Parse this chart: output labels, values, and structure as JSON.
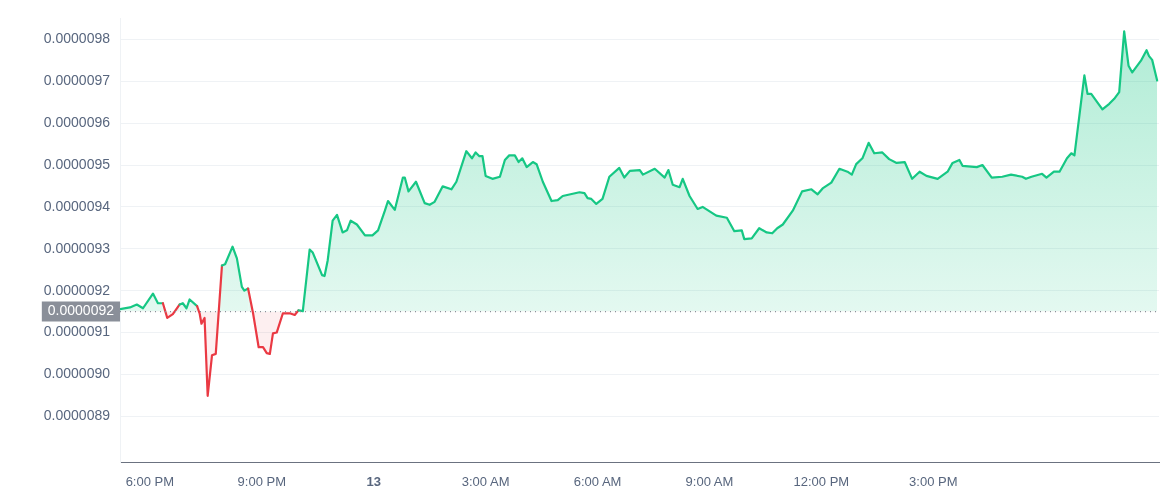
{
  "chart_data": {
    "type": "area",
    "xlim": [
      "--01-12T17:12",
      "--01-13T21:03"
    ],
    "xticks": [
      {
        "value": "--01-12T18:00",
        "label": "6:00 PM"
      },
      {
        "value": "--01-12T21:00",
        "label": "9:00 PM"
      },
      {
        "value": "--01-13T00:00",
        "label": "13"
      },
      {
        "value": "--01-13T03:00",
        "label": "3:00 AM"
      },
      {
        "value": "--01-13T06:00",
        "label": "6:00 AM"
      },
      {
        "value": "--01-13T09:00",
        "label": "9:00 AM"
      },
      {
        "value": "--01-13T12:00",
        "label": "12:00 PM"
      },
      {
        "value": "--01-13T15:00",
        "label": "3:00 PM"
      }
    ],
    "ylim": [
      8.79e-06,
      9.85e-06
    ],
    "yticks": [
      {
        "value": 8.9e-06,
        "label": "0.0000089"
      },
      {
        "value": 9e-06,
        "label": "0.0000090"
      },
      {
        "value": 9.1e-06,
        "label": "0.0000091"
      },
      {
        "value": 9.2e-06,
        "label": "0.0000092"
      },
      {
        "value": 9.3e-06,
        "label": "0.0000093"
      },
      {
        "value": 9.4e-06,
        "label": "0.0000094"
      },
      {
        "value": 9.5e-06,
        "label": "0.0000095"
      },
      {
        "value": 9.6e-06,
        "label": "0.0000096"
      },
      {
        "value": 9.7e-06,
        "label": "0.0000097"
      },
      {
        "value": 9.8e-06,
        "label": "0.0000098"
      }
    ],
    "grid": "y",
    "legend": false,
    "marker": "none",
    "line_style": "solid",
    "ref_lines": [
      {
        "axis": "y",
        "value": 9.15e-06,
        "label": "0.0000092",
        "color": "#8a8f99",
        "line_style": "dotted"
      }
    ],
    "series": [
      {
        "color": "#16c784",
        "x": [
          "--01-12T17:12",
          "--01-12T17:28",
          "--01-12T17:39",
          "--01-12T17:49",
          "--01-12T18:05",
          "--01-12T18:13",
          "--01-12T18:21",
          "--01-12T18:28",
          "--01-12T18:37",
          "--01-12T18:48",
          "--01-12T18:53",
          "--01-12T18:59",
          "--01-12T19:04",
          "--01-12T19:16",
          "--01-12T19:20",
          "--01-12T19:23",
          "--01-12T19:28",
          "--01-12T19:33",
          "--01-12T19:40",
          "--01-12T19:46",
          "--01-12T19:56",
          "--01-12T20:01",
          "--01-12T20:13",
          "--01-12T20:20",
          "--01-12T20:28",
          "--01-12T20:32",
          "--01-12T20:38",
          "--01-12T20:46",
          "--01-12T20:55",
          "--01-12T21:02",
          "--01-12T21:08",
          "--01-12T21:13",
          "--01-12T21:18",
          "--01-12T21:24",
          "--01-12T21:34",
          "--01-12T21:45",
          "--01-12T21:53",
          "--01-12T21:59",
          "--01-12T22:06",
          "--01-12T22:17",
          "--01-12T22:22",
          "--01-12T22:37",
          "--01-12T22:41",
          "--01-12T22:46",
          "--01-12T22:54",
          "--01-12T23:01",
          "--01-12T23:10",
          "--01-12T23:17",
          "--01-12T23:23",
          "--01-12T23:33",
          "--01-12T23:46",
          "--01-12T23:58",
          "--01-13T00:07",
          "--01-13T00:18",
          "--01-13T00:23",
          "--01-13T00:34",
          "--01-13T00:47",
          "--01-13T00:50",
          "--01-13T00:56",
          "--01-13T01:08",
          "--01-13T01:22",
          "--01-13T01:30",
          "--01-13T01:38",
          "--01-13T01:51",
          "--01-13T02:05",
          "--01-13T02:13",
          "--01-13T02:29",
          "--01-13T02:38",
          "--01-13T02:44",
          "--01-13T02:50",
          "--01-13T02:55",
          "--01-13T03:00",
          "--01-13T03:11",
          "--01-13T03:23",
          "--01-13T03:31",
          "--01-13T03:38",
          "--01-13T03:47",
          "--01-13T03:53",
          "--01-13T03:59",
          "--01-13T04:06",
          "--01-13T04:16",
          "--01-13T04:22",
          "--01-13T04:32",
          "--01-13T04:46",
          "--01-13T04:56",
          "--01-13T05:04",
          "--01-13T05:31",
          "--01-13T05:39",
          "--01-13T05:44",
          "--01-13T05:50",
          "--01-13T05:58",
          "--01-13T06:08",
          "--01-13T06:19",
          "--01-13T06:35",
          "--01-13T06:43",
          "--01-13T06:52",
          "--01-13T07:08",
          "--01-13T07:13",
          "--01-13T07:32",
          "--01-13T07:48",
          "--01-13T07:54",
          "--01-13T08:01",
          "--01-13T08:12",
          "--01-13T08:17",
          "--01-13T08:28",
          "--01-13T08:41",
          "--01-13T08:49",
          "--01-13T09:11",
          "--01-13T09:28",
          "--01-13T09:40",
          "--01-13T09:52",
          "--01-13T09:56",
          "--01-13T10:08",
          "--01-13T10:20",
          "--01-13T10:32",
          "--01-13T10:41",
          "--01-13T10:49",
          "--01-13T10:58",
          "--01-13T11:14",
          "--01-13T11:29",
          "--01-13T11:44",
          "--01-13T11:54",
          "--01-13T12:02",
          "--01-13T12:16",
          "--01-13T12:29",
          "--01-13T12:42",
          "--01-13T12:49",
          "--01-13T12:56",
          "--01-13T13:06",
          "--01-13T13:16",
          "--01-13T13:25",
          "--01-13T13:38",
          "--01-13T13:49",
          "--01-13T14:01",
          "--01-13T14:14",
          "--01-13T14:26",
          "--01-13T14:38",
          "--01-13T14:49",
          "--01-13T15:07",
          "--01-13T15:23",
          "--01-13T15:31",
          "--01-13T15:42",
          "--01-13T15:47",
          "--01-13T16:10",
          "--01-13T16:19",
          "--01-13T16:34",
          "--01-13T16:51",
          "--01-13T17:05",
          "--01-13T17:23",
          "--01-13T17:29",
          "--01-13T17:38",
          "--01-13T17:55",
          "--01-13T18:02",
          "--01-13T18:14",
          "--01-13T18:23",
          "--01-13T18:35",
          "--01-13T18:42",
          "--01-13T18:47",
          "--01-13T19:03",
          "--01-13T19:08",
          "--01-13T19:14",
          "--01-13T19:32",
          "--01-13T19:43",
          "--01-13T19:51",
          "--01-13T19:59",
          "--01-13T20:07",
          "--01-13T20:14",
          "--01-13T20:20",
          "--01-13T20:34",
          "--01-13T20:43",
          "--01-13T20:47",
          "--01-13T20:52",
          "--01-13T21:00"
        ],
        "values": [
          9.156e-06,
          9.16e-06,
          9.167e-06,
          9.158e-06,
          9.193e-06,
          9.17e-06,
          9.17e-06,
          9.135e-06,
          9.144e-06,
          9.167e-06,
          9.17e-06,
          9.158e-06,
          9.179e-06,
          9.163e-06,
          9.146e-06,
          9.121e-06,
          9.135e-06,
          8.949e-06,
          9.046e-06,
          9.049e-06,
          9.26e-06,
          9.263e-06,
          9.305e-06,
          9.277e-06,
          9.209e-06,
          9.2e-06,
          9.205e-06,
          9.146e-06,
          9.065e-06,
          9.065e-06,
          9.051e-06,
          9.049e-06,
          9.098e-06,
          9.1e-06,
          9.146e-06,
          9.146e-06,
          9.142e-06,
          9.153e-06,
          9.151e-06,
          9.298e-06,
          9.291e-06,
          9.237e-06,
          9.235e-06,
          9.272e-06,
          9.367e-06,
          9.381e-06,
          9.339e-06,
          9.344e-06,
          9.367e-06,
          9.358e-06,
          9.332e-06,
          9.332e-06,
          9.344e-06,
          9.391e-06,
          9.414e-06,
          9.393e-06,
          9.47e-06,
          9.47e-06,
          9.437e-06,
          9.46e-06,
          9.409e-06,
          9.405e-06,
          9.412e-06,
          9.449e-06,
          9.442e-06,
          9.46e-06,
          9.533e-06,
          9.516e-06,
          9.53e-06,
          9.521e-06,
          9.521e-06,
          9.474e-06,
          9.467e-06,
          9.472e-06,
          9.512e-06,
          9.523e-06,
          9.523e-06,
          9.507e-06,
          9.516e-06,
          9.495e-06,
          9.507e-06,
          9.502e-06,
          9.46e-06,
          9.414e-06,
          9.416e-06,
          9.426e-06,
          9.435e-06,
          9.433e-06,
          9.421e-06,
          9.419e-06,
          9.407e-06,
          9.419e-06,
          9.472e-06,
          9.493e-06,
          9.47e-06,
          9.486e-06,
          9.488e-06,
          9.477e-06,
          9.491e-06,
          9.47e-06,
          9.488e-06,
          9.453e-06,
          9.447e-06,
          9.467e-06,
          9.426e-06,
          9.395e-06,
          9.4e-06,
          9.379e-06,
          9.374e-06,
          9.342e-06,
          9.344e-06,
          9.323e-06,
          9.325e-06,
          9.349e-06,
          9.339e-06,
          9.337e-06,
          9.349e-06,
          9.358e-06,
          9.391e-06,
          9.437e-06,
          9.442e-06,
          9.43e-06,
          9.444e-06,
          9.458e-06,
          9.491e-06,
          9.484e-06,
          9.477e-06,
          9.502e-06,
          9.516e-06,
          9.553e-06,
          9.528e-06,
          9.53e-06,
          9.514e-06,
          9.505e-06,
          9.507e-06,
          9.467e-06,
          9.484e-06,
          9.474e-06,
          9.467e-06,
          9.484e-06,
          9.505e-06,
          9.512e-06,
          9.498e-06,
          9.495e-06,
          9.5e-06,
          9.47e-06,
          9.472e-06,
          9.477e-06,
          9.472e-06,
          9.467e-06,
          9.472e-06,
          9.479e-06,
          9.47e-06,
          9.484e-06,
          9.484e-06,
          9.516e-06,
          9.528e-06,
          9.523e-06,
          9.714e-06,
          9.67e-06,
          9.67e-06,
          9.633e-06,
          9.646e-06,
          9.658e-06,
          9.674e-06,
          9.819e-06,
          9.737e-06,
          9.721e-06,
          9.749e-06,
          9.774e-06,
          9.76e-06,
          9.751e-06,
          9.702e-06
        ]
      }
    ]
  }
}
